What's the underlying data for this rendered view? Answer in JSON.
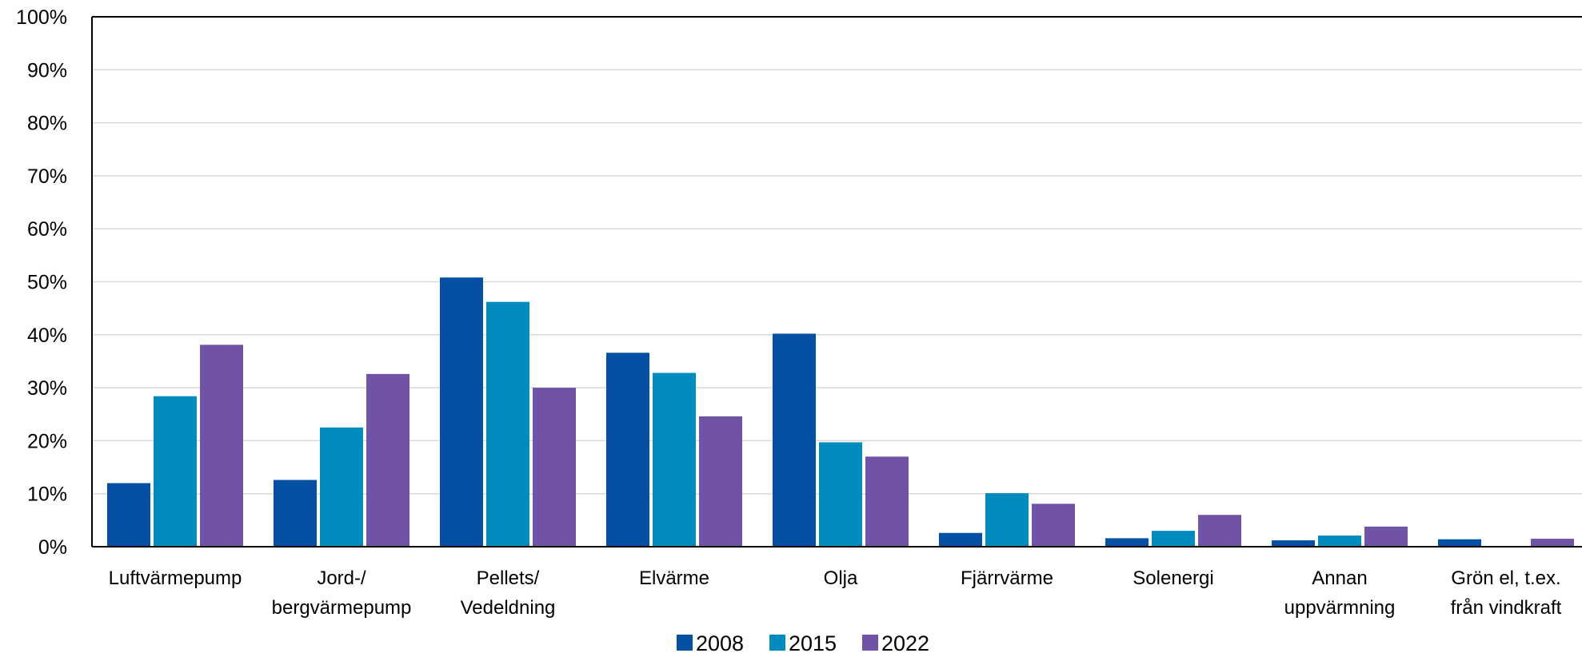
{
  "chart_data": {
    "type": "bar",
    "categories": [
      [
        "Luftvärmepump"
      ],
      [
        "Jord-/",
        "bergvärmepump"
      ],
      [
        "Pellets/",
        "Vedeldning"
      ],
      [
        "Elvärme"
      ],
      [
        "Olja"
      ],
      [
        "Fjärrvärme"
      ],
      [
        "Solenergi"
      ],
      [
        "Annan",
        "uppvärmning"
      ],
      [
        "Grön el, t.ex.",
        "från vindkraft"
      ]
    ],
    "series": [
      {
        "name": "2008",
        "color": "#0450A5",
        "values": [
          12,
          12.6,
          50.8,
          36.6,
          40.2,
          2.6,
          1.6,
          1.2,
          1.4
        ]
      },
      {
        "name": "2015",
        "color": "#008BBE",
        "values": [
          28.4,
          22.5,
          46.2,
          32.8,
          19.7,
          10.1,
          3.0,
          2.1,
          0
        ]
      },
      {
        "name": "2022",
        "color": "#7153A5",
        "values": [
          38.1,
          32.6,
          30.0,
          24.6,
          17.0,
          8.1,
          6.0,
          3.8,
          1.5
        ]
      }
    ],
    "y_ticks": [
      "0%",
      "10%",
      "20%",
      "30%",
      "40%",
      "50%",
      "60%",
      "70%",
      "80%",
      "90%",
      "100%"
    ],
    "ylim": [
      0,
      100
    ],
    "y_unit": "%",
    "grid": true,
    "legend_position": "bottom-center",
    "colors": {
      "grid": "#D9D9D9",
      "axis": "#000000"
    }
  }
}
